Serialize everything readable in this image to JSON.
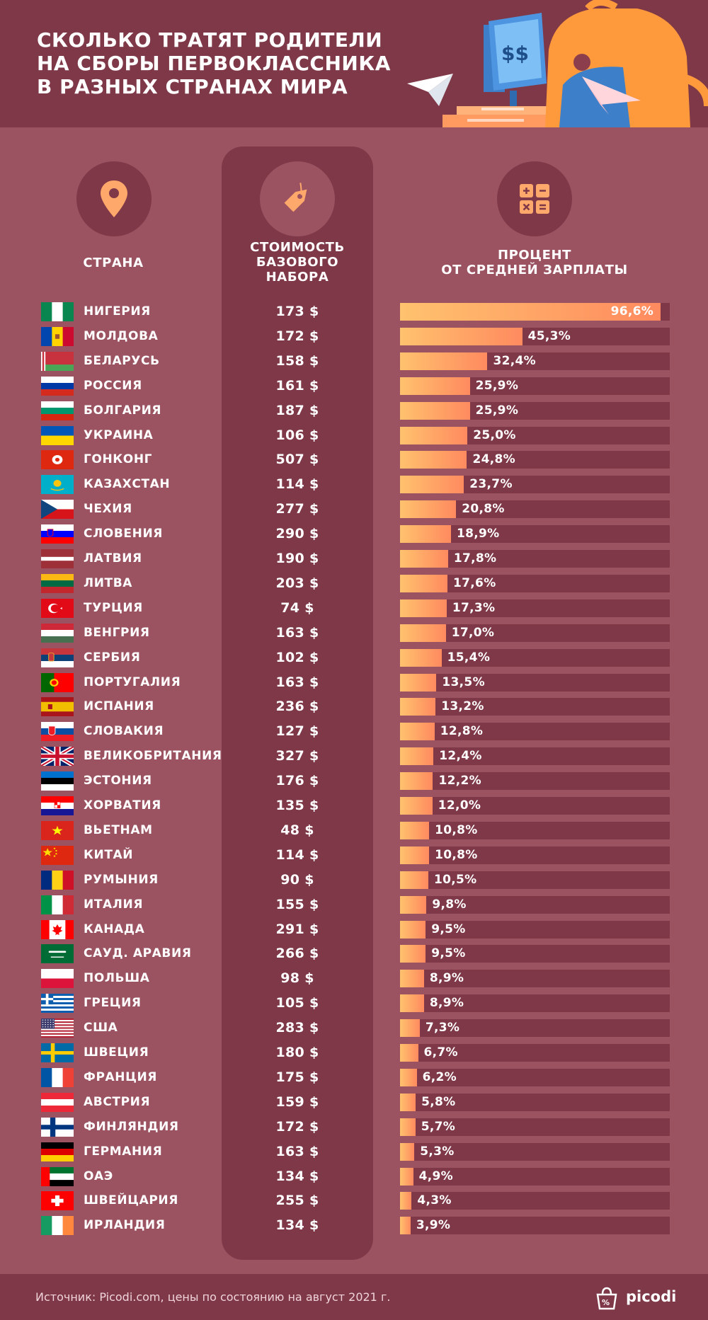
{
  "title": {
    "line1": "СКОЛЬКО ТРАТЯТ РОДИТЕЛИ",
    "line2": "НА СБОРЫ ПЕРВОКЛАССНИКА",
    "line3": "В РАЗНЫХ СТРАНАХ МИРА"
  },
  "headers": {
    "country": "СТРАНА",
    "cost_line1": "СТОИМОСТЬ",
    "cost_line2": "БАЗОВОГО",
    "cost_line3": "НАБОРА",
    "pct_line1": "ПРОЦЕНТ",
    "pct_line2": "ОТ СРЕДНЕЙ ЗАРПЛАТЫ"
  },
  "icons": {
    "country": "location-pin-icon",
    "cost": "price-tag-icon",
    "pct": "calculator-icon",
    "screen_label": "$$"
  },
  "colors": {
    "background": "#9b5361",
    "panel": "#7e3847",
    "bar_start": "#ffc26e",
    "bar_end": "#ff8a5f",
    "accent_icon": "#ffa86b"
  },
  "chart_data": {
    "type": "bar",
    "orientation": "horizontal",
    "xlim": [
      0,
      100
    ],
    "categories": [
      "НИГЕРИЯ",
      "МОЛДОВА",
      "БЕЛАРУСЬ",
      "РОССИЯ",
      "БОЛГАРИЯ",
      "УКРАИНА",
      "ГОНКОНГ",
      "КАЗАХСТАН",
      "ЧЕХИЯ",
      "СЛОВЕНИЯ",
      "ЛАТВИЯ",
      "ЛИТВА",
      "ТУРЦИЯ",
      "ВЕНГРИЯ",
      "СЕРБИЯ",
      "ПОРТУГАЛИЯ",
      "ИСПАНИЯ",
      "СЛОВАКИЯ",
      "ВЕЛИКОБРИТАНИЯ",
      "ЭСТОНИЯ",
      "ХОРВАТИЯ",
      "ВЬЕТНАМ",
      "КИТАЙ",
      "РУМЫНИЯ",
      "ИТАЛИЯ",
      "КАНАДА",
      "САУД. АРАВИЯ",
      "ПОЛЬША",
      "ГРЕЦИЯ",
      "США",
      "ШВЕЦИЯ",
      "ФРАНЦИЯ",
      "АВСТРИЯ",
      "ФИНЛЯНДИЯ",
      "ГЕРМАНИЯ",
      "ОАЭ",
      "ШВЕЙЦАРИЯ",
      "ИРЛАНДИЯ"
    ],
    "costs": [
      "173 $",
      "172 $",
      "158 $",
      "161 $",
      "187 $",
      "106 $",
      "507 $",
      "114 $",
      "277 $",
      "290 $",
      "190 $",
      "203 $",
      "74 $",
      "163 $",
      "102 $",
      "163 $",
      "236 $",
      "127 $",
      "327 $",
      "176 $",
      "135 $",
      "48 $",
      "114 $",
      "90 $",
      "155 $",
      "291 $",
      "266 $",
      "98 $",
      "105 $",
      "283 $",
      "180 $",
      "175 $",
      "159 $",
      "172 $",
      "163 $",
      "134 $",
      "255 $",
      "134 $"
    ],
    "values": [
      96.6,
      45.3,
      32.4,
      25.9,
      25.9,
      25.0,
      24.8,
      23.7,
      20.8,
      18.9,
      17.8,
      17.6,
      17.3,
      17.0,
      15.4,
      13.5,
      13.2,
      12.8,
      12.4,
      12.2,
      12.0,
      10.8,
      10.8,
      10.5,
      9.8,
      9.5,
      9.5,
      8.9,
      8.9,
      7.3,
      6.7,
      6.2,
      5.8,
      5.7,
      5.3,
      4.9,
      4.3,
      3.9
    ],
    "value_labels": [
      "96,6%",
      "45,3%",
      "32,4%",
      "25,9%",
      "25,9%",
      "25,0%",
      "24,8%",
      "23,7%",
      "20,8%",
      "18,9%",
      "17,8%",
      "17,6%",
      "17,3%",
      "17,0%",
      "15,4%",
      "13,5%",
      "13,2%",
      "12,8%",
      "12,4%",
      "12,2%",
      "12,0%",
      "10,8%",
      "10,8%",
      "10,5%",
      "9,8%",
      "9,5%",
      "9,5%",
      "8,9%",
      "8,9%",
      "7,3%",
      "6,7%",
      "6,2%",
      "5,8%",
      "5,7%",
      "5,3%",
      "4,9%",
      "4,3%",
      "3,9%"
    ],
    "flags": [
      "nigeria-flag",
      "moldova-flag",
      "belarus-flag",
      "russia-flag",
      "bulgaria-flag",
      "ukraine-flag",
      "hong-kong-flag",
      "kazakhstan-flag",
      "czechia-flag",
      "slovenia-flag",
      "latvia-flag",
      "lithuania-flag",
      "turkey-flag",
      "hungary-flag",
      "serbia-flag",
      "portugal-flag",
      "spain-flag",
      "slovakia-flag",
      "uk-flag",
      "estonia-flag",
      "croatia-flag",
      "vietnam-flag",
      "china-flag",
      "romania-flag",
      "italy-flag",
      "canada-flag",
      "saudi-arabia-flag",
      "poland-flag",
      "greece-flag",
      "usa-flag",
      "sweden-flag",
      "france-flag",
      "austria-flag",
      "finland-flag",
      "germany-flag",
      "uae-flag",
      "switzerland-flag",
      "ireland-flag"
    ]
  },
  "footer": {
    "source": "Источник: Picodi.com, цены по состоянию на август 2021 г.",
    "brand": "picodi",
    "brand_icon": "picodi-bag-icon"
  }
}
